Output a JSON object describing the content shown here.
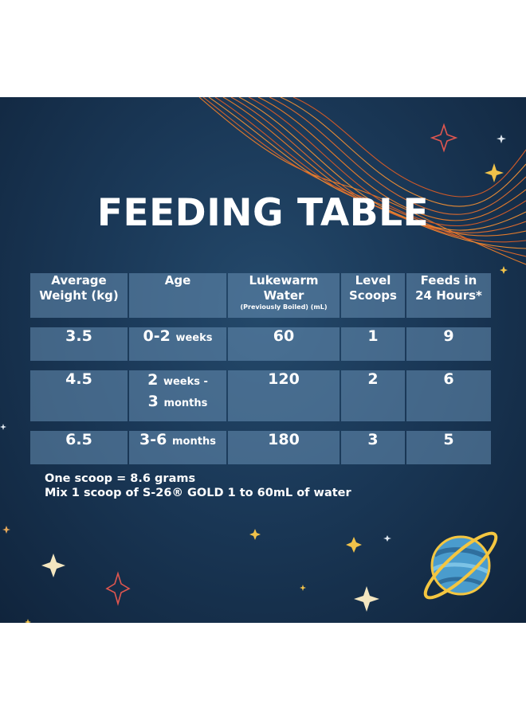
{
  "title": "FEEDING TABLE",
  "table": {
    "headers": [
      {
        "line1": "Average",
        "line2": "Weight (kg)",
        "sub": ""
      },
      {
        "line1": "Age",
        "line2": "",
        "sub": ""
      },
      {
        "line1": "Lukewarm",
        "line2": "Water",
        "sub": "(Previously Boiled) (mL)"
      },
      {
        "line1": "Level",
        "line2": "Scoops",
        "sub": ""
      },
      {
        "line1": "Feeds in",
        "line2": "24 Hours*",
        "sub": ""
      }
    ],
    "rows": [
      {
        "weight": "3.5",
        "age_num": "0-2",
        "age_unit": "weeks",
        "age_num2": "",
        "age_unit2": "",
        "water": "60",
        "scoops": "1",
        "feeds": "9"
      },
      {
        "weight": "4.5",
        "age_num": "2",
        "age_unit": "weeks -",
        "age_num2": "3",
        "age_unit2": "months",
        "water": "120",
        "scoops": "2",
        "feeds": "6"
      },
      {
        "weight": "6.5",
        "age_num": "3-6",
        "age_unit": "months",
        "age_num2": "",
        "age_unit2": "",
        "water": "180",
        "scoops": "3",
        "feeds": "5"
      }
    ]
  },
  "notes": {
    "line1": "One scoop = 8.6 grams",
    "line2": "Mix 1 scoop of S-26® GOLD 1 to 60mL of water"
  },
  "colors": {
    "background": "#1a3857",
    "cell": "#5b86ab",
    "wave": "#e0702a",
    "star_gold": "#f0c24a",
    "star_red": "#e0564f",
    "planet": "#4a9ccd",
    "ring": "#f4c640"
  }
}
